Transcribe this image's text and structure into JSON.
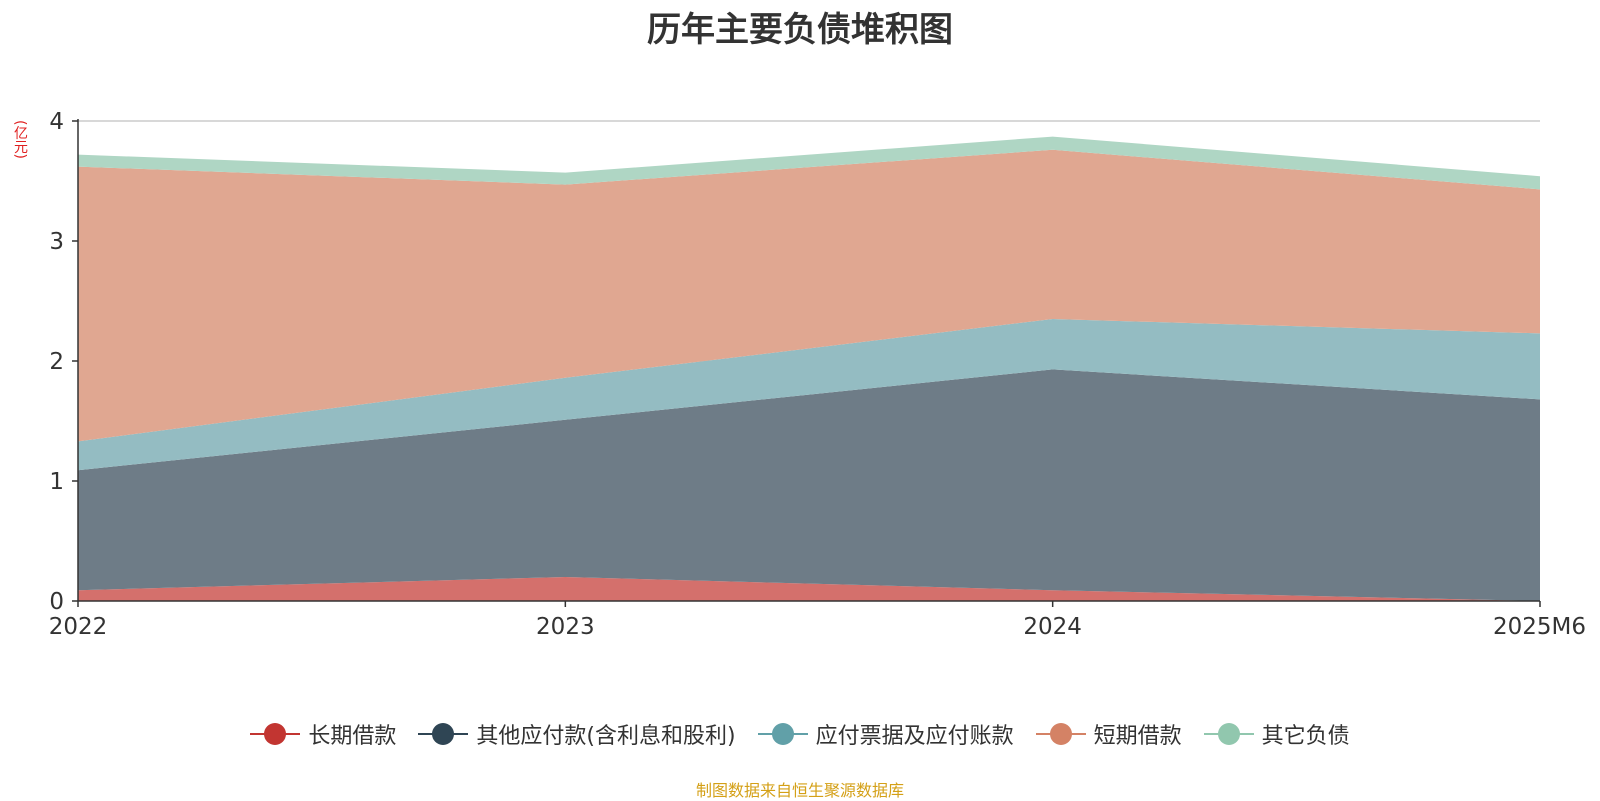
{
  "chart_data": {
    "type": "area",
    "stacked": true,
    "title": "历年主要负债堆积图",
    "ylabel": "(亿元)",
    "xlabel": "",
    "categories": [
      "2022",
      "2023",
      "2024",
      "2025M6"
    ],
    "ylim": [
      0,
      4
    ],
    "yticks": [
      0,
      1,
      2,
      3,
      4
    ],
    "grid": true,
    "legend_position": "bottom",
    "series": [
      {
        "name": "长期借款",
        "values": [
          0.09,
          0.2,
          0.09,
          0.0
        ],
        "color": "#c23531",
        "fill": "#d4706c"
      },
      {
        "name": "其他应付款(含利息和股利)",
        "values": [
          1.0,
          1.31,
          1.84,
          1.68
        ],
        "color": "#2f4554",
        "fill": "#6e7c87"
      },
      {
        "name": "应付票据及应付账款",
        "values": [
          0.24,
          0.35,
          0.42,
          0.55
        ],
        "color": "#61a0a8",
        "fill": "#94bcc2"
      },
      {
        "name": "短期借款",
        "values": [
          2.29,
          1.61,
          1.41,
          1.2
        ],
        "color": "#d48265",
        "fill": "#e0a791"
      },
      {
        "name": "其它负债",
        "values": [
          0.1,
          0.1,
          0.11,
          0.11
        ],
        "color": "#91c7ae",
        "fill": "#afd6c4"
      }
    ]
  },
  "footer": {
    "source": "制图数据来自恒生聚源数据库"
  }
}
